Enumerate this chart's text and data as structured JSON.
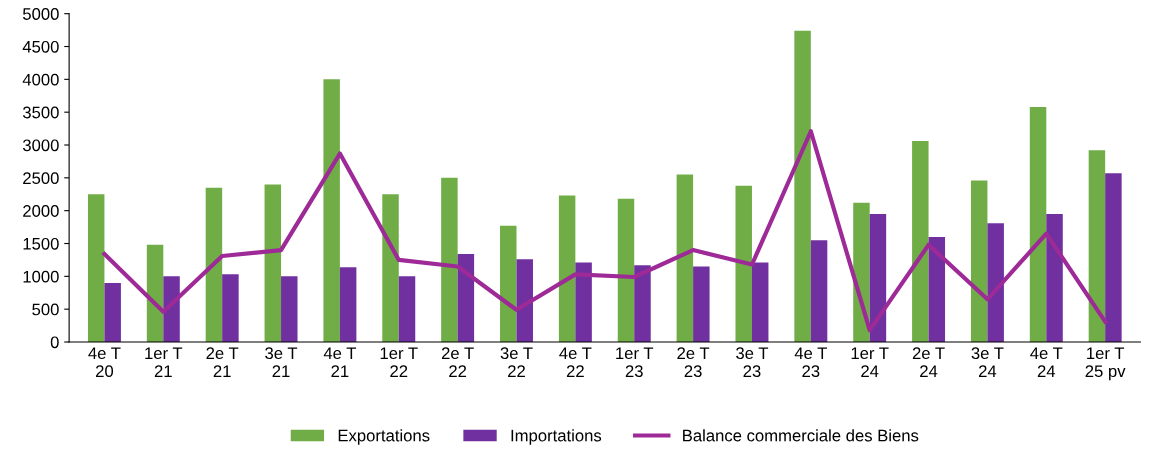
{
  "chart_data": {
    "type": "bar",
    "categories": [
      "4e T\n20",
      "1er T\n21",
      "2e T\n21",
      "3e T\n21",
      "4e T\n21",
      "1er T\n22",
      "2e T\n22",
      "3e T\n22",
      "4e T\n22",
      "1er T\n23",
      "2e T\n23",
      "3e T\n23",
      "4e T\n23",
      "1er T\n24",
      "2e T\n24",
      "3e T\n24",
      "4e T\n24",
      "1er T\n25 pv"
    ],
    "series": [
      {
        "name": "Exportations",
        "color": "#70ad47",
        "values": [
          2250,
          1480,
          2350,
          2400,
          4000,
          2250,
          2500,
          1770,
          2230,
          2180,
          2550,
          2380,
          4740,
          2120,
          3060,
          2460,
          3580,
          2920
        ]
      },
      {
        "name": "Importations",
        "color": "#7030a0",
        "values": [
          900,
          1000,
          1030,
          1000,
          1140,
          1000,
          1340,
          1260,
          1210,
          1170,
          1150,
          1210,
          1550,
          1950,
          1600,
          1810,
          1950,
          2570
        ]
      },
      {
        "name": "Balance commerciale des Biens",
        "color": "#9e2a98",
        "type": "line",
        "values": [
          1340,
          460,
          1310,
          1400,
          2870,
          1250,
          1150,
          490,
          1030,
          990,
          1400,
          1180,
          3210,
          180,
          1480,
          650,
          1650,
          310
        ]
      }
    ],
    "ylim": [
      0,
      5000
    ],
    "yticks": [
      0,
      500,
      1000,
      1500,
      2000,
      2500,
      3000,
      3500,
      4000,
      4500,
      5000
    ],
    "grid": false,
    "legend": "bottom",
    "marker": "none",
    "line_style": "solid"
  }
}
